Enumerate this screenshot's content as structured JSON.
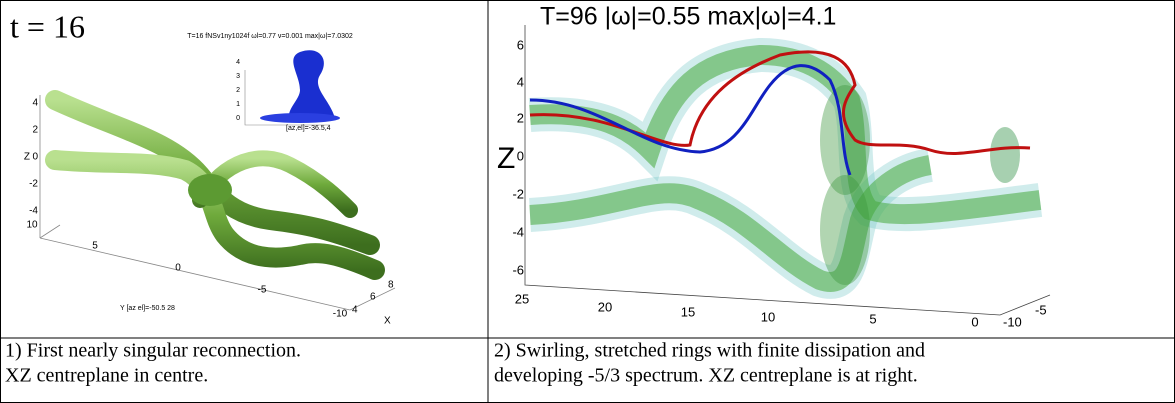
{
  "panels": [
    {
      "label": "t = 16",
      "header": "T=16 fNSv1ny1024f  ωl=0.77  ν=0.001  max|ω|=7.0302",
      "z_label": "Z",
      "z_ticks": [
        "4",
        "2",
        "0",
        "-2",
        "-4"
      ],
      "y_ticks": [
        "10",
        "5",
        "0",
        "-5",
        "-10"
      ],
      "x_ticks": [
        "4",
        "6",
        "8"
      ],
      "x_label": "X",
      "view_label": "Y [az el]=-50.5 28",
      "inset_ticks": [
        "4",
        "3",
        "2",
        "1",
        "0"
      ],
      "inset_view": "[az,el]=-36.5,4"
    },
    {
      "label": "T=96  |ω|=0.55    max|ω|=4.1",
      "z_label": "Z",
      "z_ticks": [
        "6",
        "4",
        "2",
        "0",
        "-2",
        "-4",
        "-6"
      ],
      "bottom_ticks": [
        "25",
        "20",
        "15",
        "10",
        "5",
        "0"
      ],
      "side_ticks": [
        "-5",
        "-10"
      ]
    }
  ],
  "captions": [
    [
      "1) First nearly singular reconnection.",
      "XZ centreplane in centre."
    ],
    [
      "2) Swirling, stretched rings with finite dissipation and",
      "developing -5/3 spectrum. XZ centreplane is at right."
    ]
  ]
}
